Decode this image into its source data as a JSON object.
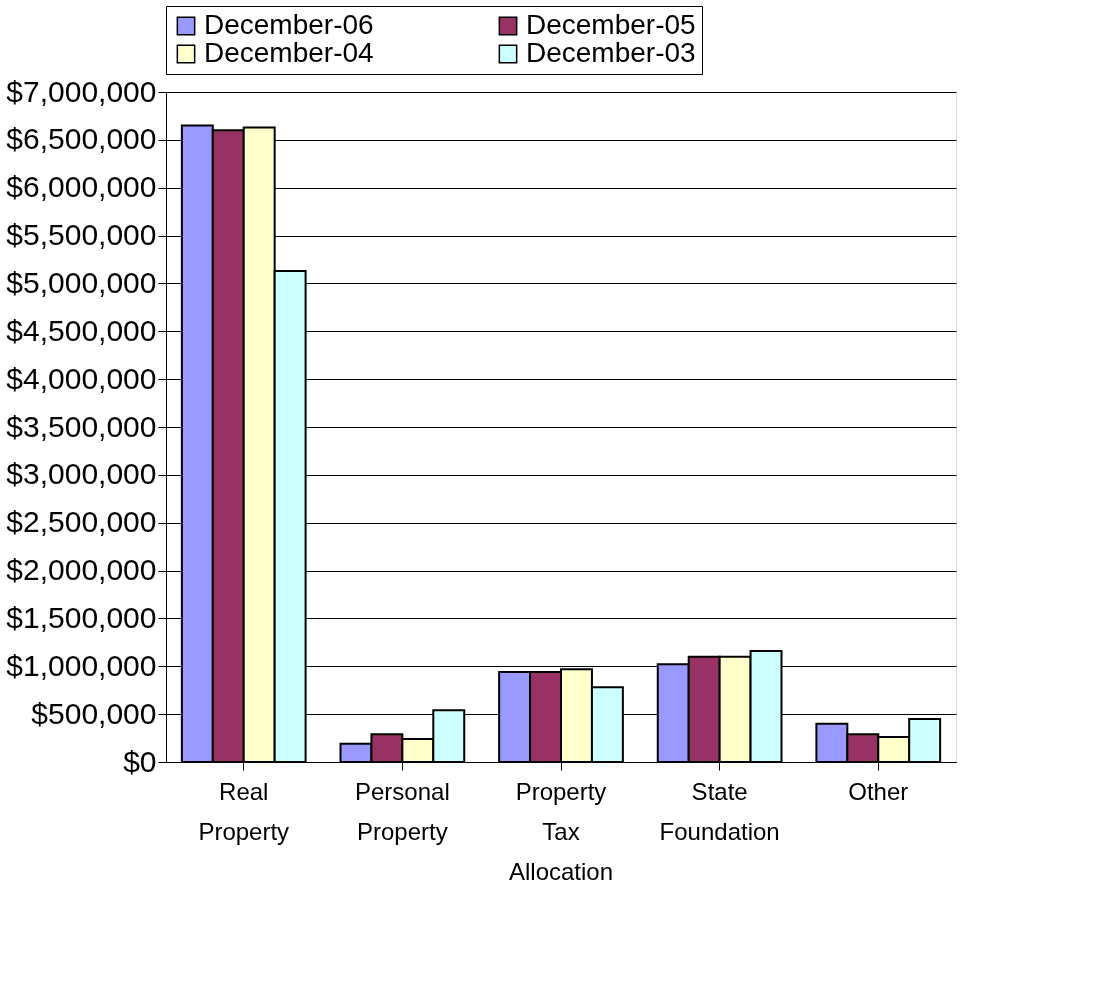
{
  "chart_data": {
    "type": "bar",
    "categories": [
      "Real Property",
      "Personal Property",
      "Property Tax Allocation",
      "State Foundation",
      "Other"
    ],
    "series": [
      {
        "name": "December-06",
        "color": "#9999ff",
        "values": [
          6650000,
          190000,
          940000,
          1020000,
          400000
        ]
      },
      {
        "name": "December-05",
        "color": "#993366",
        "values": [
          6600000,
          290000,
          940000,
          1100000,
          290000
        ]
      },
      {
        "name": "December-04",
        "color": "#ffffcc",
        "values": [
          6630000,
          240000,
          970000,
          1100000,
          260000
        ]
      },
      {
        "name": "December-03",
        "color": "#ccffff",
        "values": [
          5130000,
          540000,
          780000,
          1160000,
          450000
        ]
      }
    ],
    "ylim": [
      0,
      7000000
    ],
    "yticks": [
      {
        "value": 0,
        "label": "$0"
      },
      {
        "value": 500000,
        "label": "$500,000"
      },
      {
        "value": 1000000,
        "label": "$1,000,000"
      },
      {
        "value": 1500000,
        "label": "$1,500,000"
      },
      {
        "value": 2000000,
        "label": "$2,000,000"
      },
      {
        "value": 2500000,
        "label": "$2,500,000"
      },
      {
        "value": 3000000,
        "label": "$3,000,000"
      },
      {
        "value": 3500000,
        "label": "$3,500,000"
      },
      {
        "value": 4000000,
        "label": "$4,000,000"
      },
      {
        "value": 4500000,
        "label": "$4,500,000"
      },
      {
        "value": 5000000,
        "label": "$5,000,000"
      },
      {
        "value": 5500000,
        "label": "$5,500,000"
      },
      {
        "value": 6000000,
        "label": "$6,000,000"
      },
      {
        "value": 6500000,
        "label": "$6,500,000"
      },
      {
        "value": 7000000,
        "label": "$7,000,000"
      }
    ],
    "grid": "y",
    "legend": "top"
  }
}
